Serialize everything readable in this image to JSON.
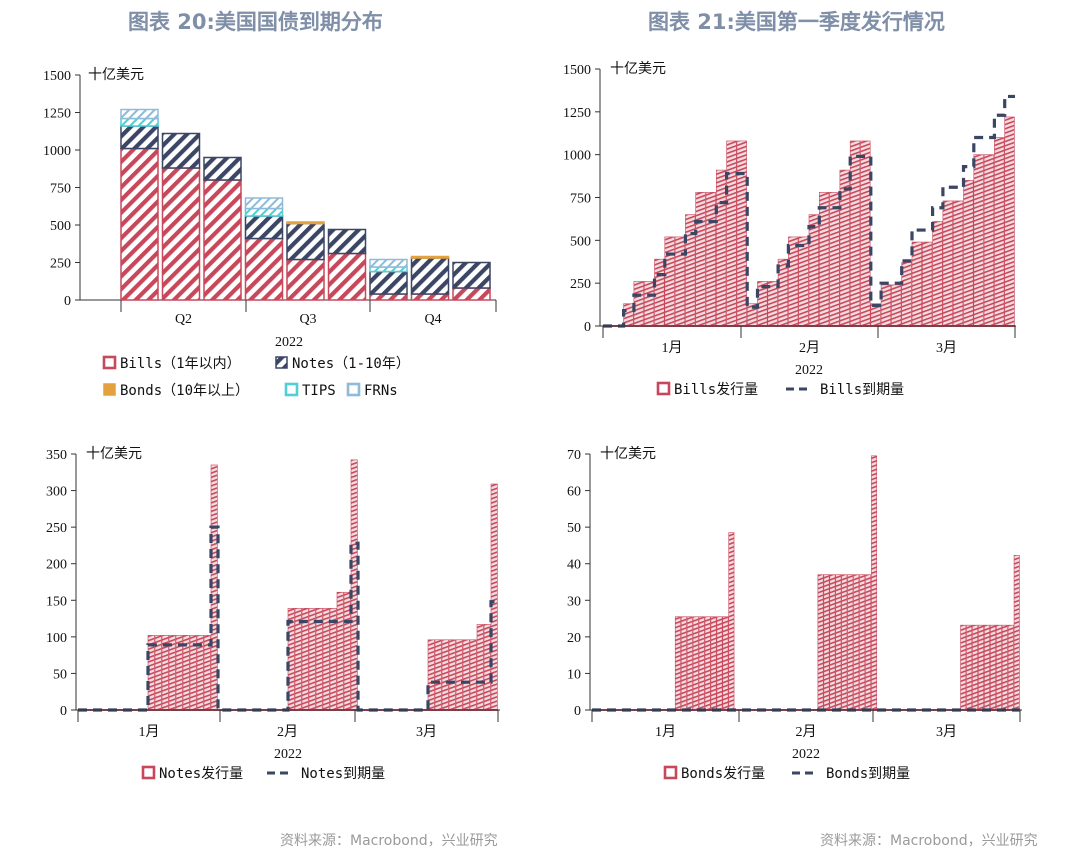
{
  "page": {
    "left_title": "图表 20:美国国债到期分布",
    "right_title": "图表 21:美国第一季度发行情况",
    "source_left": "资料来源：Macrobond，兴业研究",
    "source_right": "资料来源：Macrobond，兴业研究"
  },
  "colors": {
    "red": "#c8485b",
    "navy": "#3b4564",
    "gold": "#e3a23d",
    "cyan": "#4fcfd6",
    "lightblue": "#8fbbd9",
    "title": "#7f8fa8"
  },
  "chart_data": [
    {
      "type": "bar",
      "id": "maturity",
      "unit": "十亿美元",
      "ylim": [
        0,
        1500
      ],
      "yticks": [
        0,
        250,
        500,
        750,
        1000,
        1250,
        1500
      ],
      "year_label": "2022",
      "quarters": [
        "Q2",
        "Q3",
        "Q4"
      ],
      "series": [
        {
          "name": "Bills（1年以内）",
          "color": "#c8485b",
          "values": [
            1010,
            880,
            800,
            410,
            270,
            310,
            40,
            40,
            80
          ]
        },
        {
          "name": "Notes（1-10年）",
          "color": "#3b4564",
          "values": [
            150,
            230,
            150,
            150,
            240,
            160,
            150,
            240,
            170
          ]
        },
        {
          "name": "Bonds（10年以上）",
          "color": "#e3a23d",
          "values": [
            0,
            0,
            0,
            0,
            10,
            0,
            0,
            10,
            0
          ]
        },
        {
          "name": "TIPS",
          "color": "#4fcfd6",
          "values": [
            50,
            0,
            0,
            50,
            0,
            0,
            30,
            0,
            0
          ]
        },
        {
          "name": "FRNs",
          "color": "#8fbbd9",
          "values": [
            60,
            0,
            0,
            70,
            0,
            0,
            50,
            0,
            0
          ]
        }
      ]
    },
    {
      "type": "bar",
      "id": "bills",
      "unit": "十亿美元",
      "ylim": [
        0,
        1500
      ],
      "yticks": [
        0,
        250,
        500,
        750,
        1000,
        1250,
        1500
      ],
      "year_label": "2022",
      "months": [
        "1月",
        "2月",
        "3月"
      ],
      "legend": [
        "Bills发行量",
        "Bills到期量"
      ],
      "issuance": [
        0,
        0,
        130,
        260,
        260,
        390,
        520,
        520,
        650,
        780,
        780,
        910,
        1080,
        1080,
        130,
        260,
        260,
        390,
        520,
        520,
        650,
        780,
        780,
        910,
        1080,
        1080,
        130,
        240,
        240,
        370,
        490,
        490,
        610,
        730,
        730,
        850,
        1000,
        1000,
        1100,
        1220
      ],
      "maturity": [
        0,
        0,
        90,
        180,
        180,
        300,
        420,
        420,
        540,
        610,
        610,
        720,
        890,
        890,
        110,
        230,
        230,
        350,
        470,
        470,
        580,
        690,
        690,
        800,
        990,
        990,
        120,
        250,
        250,
        380,
        560,
        560,
        690,
        810,
        810,
        930,
        1100,
        1100,
        1230,
        1340
      ]
    },
    {
      "type": "bar",
      "id": "notes",
      "unit": "十亿美元",
      "ylim": [
        0,
        350
      ],
      "yticks": [
        0,
        50,
        100,
        150,
        200,
        250,
        300,
        350
      ],
      "year_label": "2022",
      "months": [
        "1月",
        "2月",
        "3月"
      ],
      "legend": [
        "Notes发行量",
        "Notes到期量"
      ],
      "issuance": [
        0,
        0,
        0,
        0,
        0,
        0,
        0,
        0,
        0,
        0,
        102,
        102,
        102,
        102,
        102,
        102,
        102,
        102,
        102,
        335,
        0,
        0,
        0,
        0,
        0,
        0,
        0,
        0,
        0,
        0,
        139,
        139,
        139,
        139,
        139,
        139,
        139,
        161,
        161,
        342,
        0,
        0,
        0,
        0,
        0,
        0,
        0,
        0,
        0,
        0,
        96,
        96,
        96,
        96,
        96,
        96,
        96,
        117,
        117,
        309
      ],
      "maturity": [
        0,
        0,
        0,
        0,
        0,
        0,
        0,
        0,
        0,
        0,
        89,
        89,
        89,
        89,
        89,
        89,
        89,
        89,
        89,
        250,
        0,
        0,
        0,
        0,
        0,
        0,
        0,
        0,
        0,
        0,
        121,
        121,
        121,
        121,
        121,
        121,
        121,
        121,
        121,
        228,
        0,
        0,
        0,
        0,
        0,
        0,
        0,
        0,
        0,
        0,
        38,
        38,
        38,
        38,
        38,
        38,
        38,
        38,
        38,
        148
      ]
    },
    {
      "type": "bar",
      "id": "bonds",
      "unit": "十亿美元",
      "ylim": [
        0,
        70
      ],
      "yticks": [
        0,
        10,
        20,
        30,
        40,
        50,
        60,
        70
      ],
      "year_label": "2022",
      "months": [
        "1月",
        "2月",
        "3月"
      ],
      "legend": [
        "Bonds发行量",
        "Bonds到期量"
      ],
      "issuance": [
        0,
        0,
        0,
        0,
        0,
        0,
        0,
        0,
        0,
        0,
        0,
        0,
        0,
        0,
        25.5,
        25.5,
        25.5,
        25.5,
        25.5,
        25.5,
        25.5,
        25.5,
        25.5,
        48.5,
        0,
        0,
        0,
        0,
        0,
        0,
        0,
        0,
        0,
        0,
        0,
        0,
        0,
        0,
        37,
        37,
        37,
        37,
        37,
        37,
        37,
        37,
        37,
        69.5,
        0,
        0,
        0,
        0,
        0,
        0,
        0,
        0,
        0,
        0,
        0,
        0,
        0,
        0,
        23.2,
        23.2,
        23.2,
        23.2,
        23.2,
        23.2,
        23.2,
        23.2,
        23.2,
        42.3
      ],
      "maturity": [
        0,
        0,
        0,
        0,
        0,
        0,
        0,
        0,
        0,
        0,
        0,
        0,
        0,
        0,
        0,
        0,
        0,
        0,
        0,
        0,
        0,
        0,
        0,
        0,
        0,
        0,
        0,
        0,
        0,
        0,
        0,
        0,
        0,
        0,
        0,
        0,
        0,
        0,
        0,
        0,
        0,
        0,
        0,
        0,
        0,
        0,
        0,
        0,
        0,
        0,
        0,
        0,
        0,
        0,
        0,
        0,
        0,
        0,
        0,
        0,
        0,
        0,
        0,
        0,
        0,
        0,
        0,
        0,
        0,
        0,
        0,
        0
      ]
    }
  ]
}
